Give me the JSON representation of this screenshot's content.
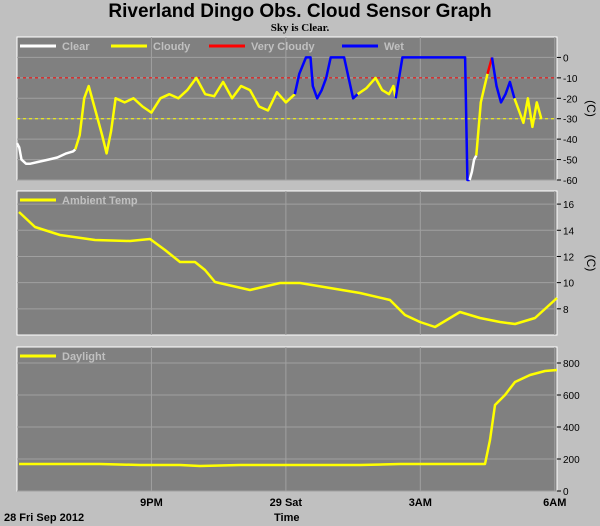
{
  "header": {
    "title": "Riverland Dingo Obs. Cloud Sensor Graph",
    "subtitle": "Sky is Clear."
  },
  "footer": {
    "date_label": "28 Fri Sep 2012",
    "time_label": "Time"
  },
  "colors": {
    "panel": "#808080",
    "grid": "#a0a0a0",
    "clear": "#ffffff",
    "cloudy": "#ffff00",
    "very_cloudy": "#ff0000",
    "wet": "#0000ff",
    "temp": "#ffff00",
    "daylight": "#ffff00"
  },
  "chart_data": [
    {
      "type": "line",
      "name": "sky-temperature",
      "ylabel": "(C)",
      "ylim": [
        -60,
        10
      ],
      "yticks": [
        0,
        -10,
        -20,
        -30,
        -40,
        -50,
        -60
      ],
      "xlim": [
        18.0,
        30.05
      ],
      "thresholds": [
        {
          "y": -10,
          "color": "#ff0000"
        },
        {
          "y": -30,
          "color": "#ffff00"
        }
      ],
      "legend": [
        {
          "label": "Clear",
          "color": "#ffffff"
        },
        {
          "label": "Cloudy",
          "color": "#ffff00"
        },
        {
          "label": "Very Cloudy",
          "color": "#ff0000"
        },
        {
          "label": "Wet",
          "color": "#0000ff"
        }
      ],
      "segments": [
        {
          "state": "clear",
          "x": [
            18.0,
            18.05,
            18.1,
            18.2,
            18.3,
            18.5,
            18.7,
            18.9,
            19.1,
            19.25,
            19.3
          ],
          "y": [
            -42,
            -44,
            -50,
            -52,
            -52,
            -51,
            -50,
            -49,
            -47,
            -46,
            -45
          ]
        },
        {
          "state": "cloudy",
          "x": [
            19.3,
            19.4,
            19.5,
            19.6,
            19.75,
            19.9,
            20.0,
            20.1,
            20.2,
            20.4,
            20.6,
            20.8,
            21.0,
            21.2,
            21.4,
            21.6,
            21.8,
            22.0,
            22.2,
            22.4,
            22.6,
            22.8,
            23.0,
            23.2,
            23.4,
            23.6,
            23.8,
            24.0,
            24.2
          ],
          "y": [
            -45,
            -38,
            -20,
            -14,
            -26,
            -38,
            -47,
            -36,
            -20,
            -22,
            -20,
            -24,
            -27,
            -20,
            -18,
            -20,
            -16,
            -10,
            -18,
            -19,
            -12,
            -20,
            -14,
            -16,
            -24,
            -26,
            -17,
            -22,
            -18
          ]
        },
        {
          "state": "wet",
          "x": [
            24.2,
            24.3,
            24.45,
            24.55,
            24.6,
            24.7,
            24.8,
            24.9,
            25.0,
            25.1,
            25.3,
            25.5,
            25.6
          ],
          "y": [
            -18,
            -8,
            0,
            0,
            -14,
            -20,
            -16,
            -10,
            0,
            0,
            0,
            -20,
            -18
          ]
        },
        {
          "state": "cloudy",
          "x": [
            25.6,
            25.8,
            26.0,
            26.15,
            26.3,
            26.4,
            26.45
          ],
          "y": [
            -18,
            -15,
            -10,
            -16,
            -18,
            -14,
            -20
          ]
        },
        {
          "state": "wet",
          "x": [
            26.45,
            26.6,
            26.9,
            27.4,
            27.9,
            28.0,
            28.05,
            28.1
          ],
          "y": [
            -20,
            0,
            0,
            0,
            0,
            0,
            -60,
            -62
          ]
        },
        {
          "state": "clear",
          "x": [
            28.1,
            28.15,
            28.2,
            28.25
          ],
          "y": [
            -62,
            -56,
            -50,
            -48
          ]
        },
        {
          "state": "cloudy",
          "x": [
            28.25,
            28.35,
            28.5
          ],
          "y": [
            -48,
            -22,
            -8
          ]
        },
        {
          "state": "very_cloudy",
          "x": [
            28.5,
            28.6
          ],
          "y": [
            -8,
            0
          ]
        },
        {
          "state": "wet",
          "x": [
            28.6,
            28.7,
            28.8,
            28.9,
            29.0,
            29.1
          ],
          "y": [
            0,
            -14,
            -22,
            -18,
            -12,
            -20
          ]
        },
        {
          "state": "cloudy",
          "x": [
            29.1,
            29.2,
            29.3,
            29.4,
            29.5,
            29.6,
            29.7
          ],
          "y": [
            -20,
            -26,
            -32,
            -20,
            -34,
            -22,
            -30
          ]
        }
      ],
      "segments_note": ""
    },
    {
      "type": "line",
      "name": "ambient-temperature",
      "ylabel": "(C)",
      "ylim": [
        6,
        17
      ],
      "yticks": [
        16,
        14,
        12,
        10,
        8
      ],
      "legend": [
        {
          "label": "Ambient Temp",
          "color": "#ffff00"
        }
      ]
    },
    {
      "type": "line",
      "name": "daylight",
      "ylabel": "",
      "ylim": [
        0,
        900
      ],
      "yticks": [
        800,
        600,
        400,
        200,
        0
      ],
      "legend": [
        {
          "label": "Daylight",
          "color": "#ffff00"
        }
      ]
    }
  ]
}
